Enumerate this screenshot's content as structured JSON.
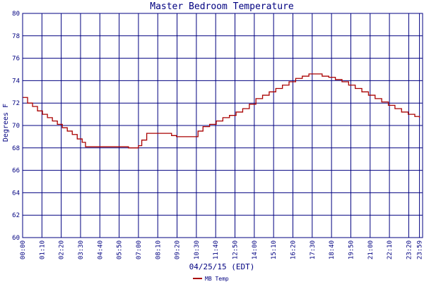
{
  "chart_data": {
    "type": "line",
    "title": "Master Bedroom Temperature",
    "xlabel": "04/25/15 (EDT)",
    "ylabel": "Degrees F",
    "ylim": [
      60,
      80
    ],
    "yticks": [
      60,
      62,
      64,
      66,
      68,
      70,
      72,
      74,
      76,
      78,
      80
    ],
    "xlim": [
      0,
      24.17
    ],
    "xtick_labels": [
      "00:00",
      "01:10",
      "02:20",
      "03:30",
      "04:40",
      "05:50",
      "07:00",
      "08:10",
      "09:20",
      "10:30",
      "11:40",
      "12:50",
      "14:00",
      "15:10",
      "16:20",
      "17:30",
      "18:40",
      "19:50",
      "21:00",
      "22:10",
      "23:20",
      "23:59"
    ],
    "xtick_hours": [
      0,
      1.167,
      2.333,
      3.5,
      4.667,
      5.833,
      7.0,
      8.167,
      9.333,
      10.5,
      11.667,
      12.833,
      14.0,
      15.167,
      16.333,
      17.5,
      18.667,
      19.833,
      21.0,
      22.167,
      23.333,
      23.983
    ],
    "grid": true,
    "legend_position": "bottom-left",
    "series": [
      {
        "name": "MB Temp",
        "color": "#aa0000",
        "x": [
          0,
          0.3,
          0.6,
          0.9,
          1.2,
          1.5,
          1.8,
          2.1,
          2.4,
          2.7,
          3.0,
          3.3,
          3.6,
          3.8,
          4.2,
          4.6,
          5.0,
          5.5,
          6.0,
          6.4,
          6.8,
          7.0,
          7.2,
          7.5,
          7.8,
          8.2,
          8.6,
          9.0,
          9.3,
          9.6,
          10.0,
          10.3,
          10.6,
          10.9,
          11.3,
          11.7,
          12.1,
          12.5,
          12.9,
          13.3,
          13.7,
          14.1,
          14.5,
          14.9,
          15.3,
          15.7,
          16.1,
          16.5,
          16.9,
          17.3,
          17.7,
          18.1,
          18.5,
          18.9,
          19.3,
          19.7,
          20.1,
          20.5,
          20.9,
          21.3,
          21.7,
          22.1,
          22.5,
          22.9,
          23.3,
          23.7,
          23.98
        ],
        "y": [
          72.5,
          72.0,
          71.7,
          71.3,
          71.0,
          70.7,
          70.4,
          70.1,
          69.8,
          69.5,
          69.2,
          68.8,
          68.5,
          68.1,
          68.1,
          68.1,
          68.1,
          68.1,
          68.1,
          68.0,
          68.0,
          68.2,
          68.7,
          69.3,
          69.3,
          69.3,
          69.3,
          69.1,
          69.0,
          69.0,
          69.0,
          69.0,
          69.5,
          69.9,
          70.1,
          70.4,
          70.7,
          70.9,
          71.2,
          71.5,
          71.9,
          72.4,
          72.7,
          73.0,
          73.3,
          73.6,
          73.9,
          74.2,
          74.4,
          74.6,
          74.6,
          74.4,
          74.3,
          74.1,
          73.9,
          73.6,
          73.3,
          73.0,
          72.7,
          72.4,
          72.1,
          71.8,
          71.5,
          71.2,
          71.0,
          70.8,
          70.7
        ]
      }
    ]
  }
}
